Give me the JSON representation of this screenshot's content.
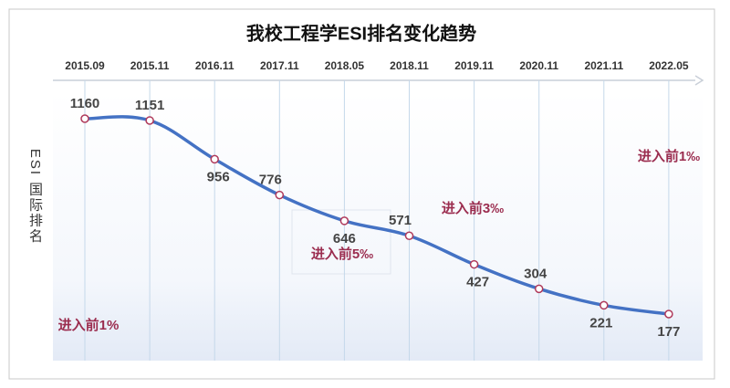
{
  "chart_data": {
    "type": "line",
    "title": "我校工程学ESI排名变化趋势",
    "y_label": "ESI 国际排名",
    "categories": [
      "2015.09",
      "2015.11",
      "2016.11",
      "2017.11",
      "2018.05",
      "2018.11",
      "2019.11",
      "2020.11",
      "2021.11",
      "2022.05"
    ],
    "values": [
      1160,
      1151,
      956,
      776,
      646,
      571,
      427,
      304,
      221,
      177
    ],
    "color": "#4472c4",
    "y_reversed": true,
    "annotations": [
      "进入前1%",
      "进入前5‰",
      "进入前3‰",
      "进入前1‰"
    ]
  }
}
